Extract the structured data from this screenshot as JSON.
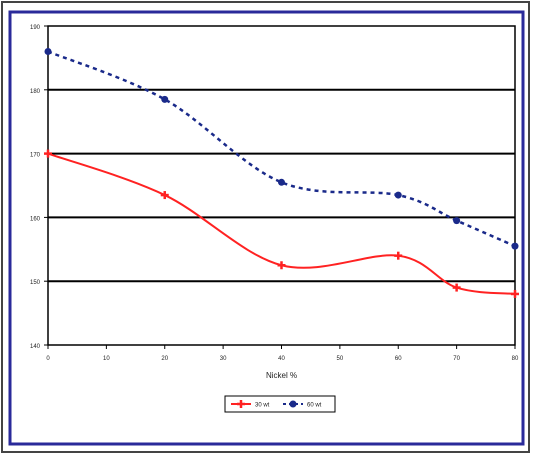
{
  "chart_data": {
    "type": "line",
    "title": "",
    "xlabel": "Nickel %",
    "ylabel": "",
    "x": [
      0,
      20,
      40,
      60,
      70,
      80
    ],
    "x_ticks": [
      0,
      10,
      20,
      30,
      40,
      50,
      60,
      70,
      80
    ],
    "xlim": [
      0,
      80
    ],
    "ylim": [
      140,
      190
    ],
    "y_ticks": [
      140,
      150,
      160,
      170,
      180,
      190
    ],
    "grid": "horizontal",
    "legend": "bottom-center",
    "series": [
      {
        "name": "30 wt",
        "values": [
          170,
          163.5,
          152.5,
          154,
          149,
          148
        ],
        "color": "#ff2222",
        "style": "solid",
        "marker": "plus"
      },
      {
        "name": "60 wt",
        "values": [
          186,
          178.5,
          165.5,
          163.5,
          159.5,
          155.5
        ],
        "color": "#1a2a8a",
        "style": "dotted",
        "marker": "circle"
      }
    ],
    "colors": {
      "frame": "#000000",
      "blue_border": "#2a2a9a",
      "grid": "#000000"
    }
  }
}
